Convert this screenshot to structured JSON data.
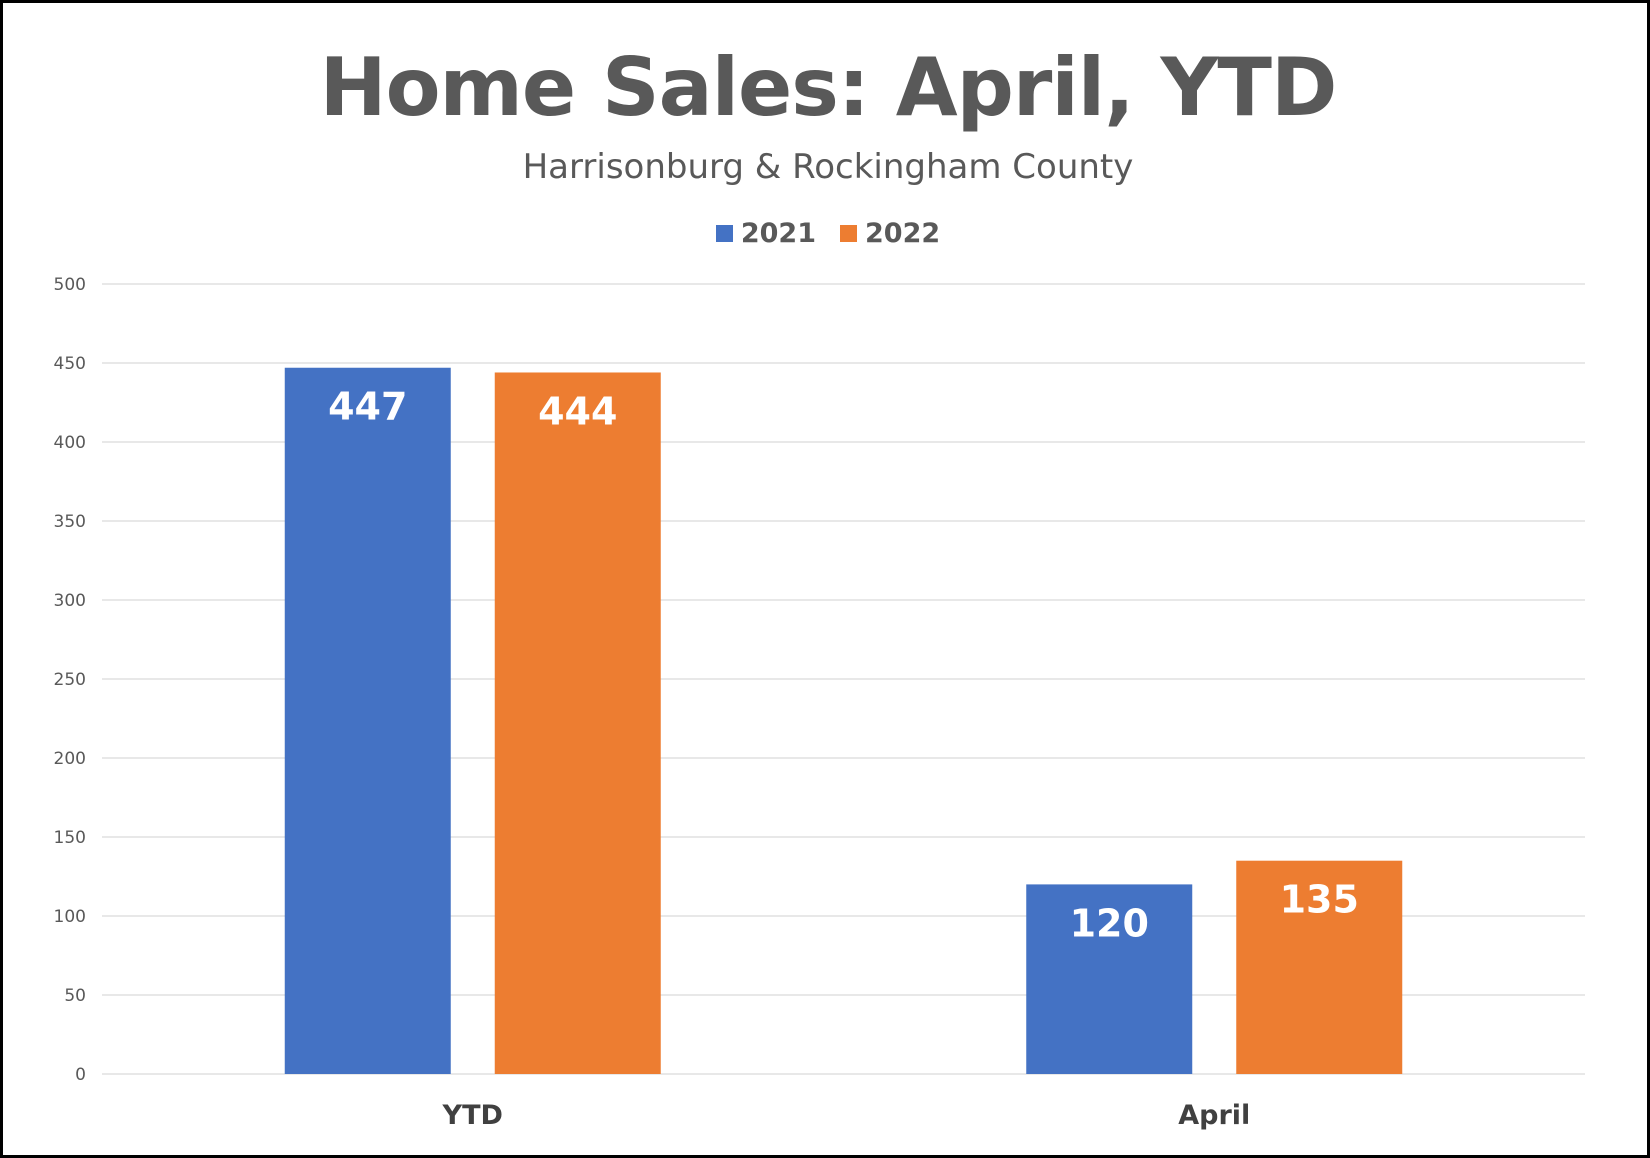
{
  "chart_data": {
    "type": "bar",
    "title": "Home Sales: April, YTD",
    "subtitle": "Harrisonburg & Rockingham County",
    "categories": [
      "YTD",
      "April"
    ],
    "series": [
      {
        "name": "2021",
        "values": [
          447,
          120
        ],
        "color": "#4472C4"
      },
      {
        "name": "2022",
        "values": [
          444,
          135
        ],
        "color": "#ED7D31"
      }
    ],
    "ylim": [
      0,
      500
    ],
    "yticks": [
      0,
      50,
      100,
      150,
      200,
      250,
      300,
      350,
      400,
      450,
      500
    ],
    "grid": true,
    "legend_position": "top-center",
    "data_labels": "inside-end"
  },
  "colors": {
    "title_text": "#595959",
    "gridline": "#D9D9D9",
    "frame_border": "#000000"
  }
}
